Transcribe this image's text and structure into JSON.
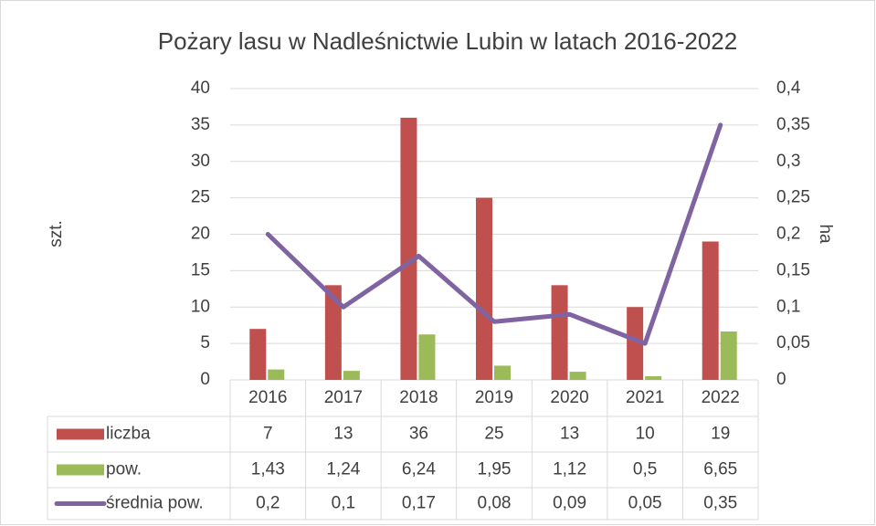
{
  "chart_data": {
    "type": "bar",
    "title": "Pożary lasu  w Nadleśnictwie Lubin w latach 2016-2022",
    "y_label": "szt.",
    "y2_label": "ha",
    "categories": [
      "2016",
      "2017",
      "2018",
      "2019",
      "2020",
      "2021",
      "2022"
    ],
    "series": [
      {
        "name": "liczba",
        "type": "bar",
        "color": "#c0504d",
        "values": [
          7,
          13,
          36,
          25,
          13,
          10,
          19
        ]
      },
      {
        "name": "pow.",
        "type": "bar",
        "color": "#9bbb59",
        "values": [
          1.43,
          1.24,
          6.24,
          1.95,
          1.12,
          0.5,
          6.65
        ],
        "value_labels": [
          "1,43",
          "1,24",
          "6,24",
          "1,95",
          "1,12",
          "0,5",
          "6,65"
        ]
      },
      {
        "name": "średnia pow.",
        "type": "line",
        "axis": "y2",
        "color": "#8064a2",
        "values": [
          0.2,
          0.1,
          0.17,
          0.08,
          0.09,
          0.05,
          0.35
        ],
        "value_labels": [
          "0,2",
          "0,1",
          "0,17",
          "0,08",
          "0,09",
          "0,05",
          "0,35"
        ]
      }
    ],
    "ylim": [
      0,
      40
    ],
    "yticks": [
      0,
      5,
      10,
      15,
      20,
      25,
      30,
      35,
      40
    ],
    "y2lim": [
      0,
      0.4
    ],
    "y2ticks": [
      0,
      {
        "value": 0.05,
        "label": "0,05"
      },
      {
        "value": 0.1,
        "label": "0,1"
      },
      {
        "value": 0.15,
        "label": "0,15"
      },
      {
        "value": 0.2,
        "label": "0,2"
      },
      {
        "value": 0.25,
        "label": "0,25"
      },
      {
        "value": 0.3,
        "label": "0,3"
      },
      {
        "value": 0.35,
        "label": "0,35"
      },
      {
        "value": 0.4,
        "label": "0,4"
      }
    ],
    "grid": true,
    "data_table": true
  }
}
